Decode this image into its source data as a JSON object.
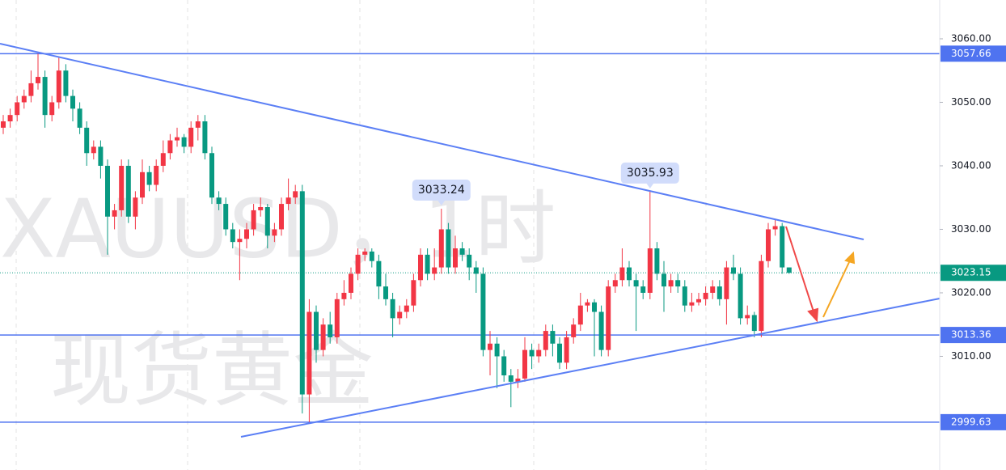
{
  "chart_data": {
    "type": "candlestick",
    "watermark": [
      "XAUUSD，1时",
      "现货黄金"
    ],
    "up_color": "#f23645",
    "down_color": "#089981",
    "level_color": "#4f73f0",
    "ylim": [
      2992.1,
      3066.11
    ],
    "yticks": [
      {
        "value": 3010,
        "label": "3010.00"
      },
      {
        "value": 3020,
        "label": "3020.00"
      },
      {
        "value": 3030,
        "label": "3030.00"
      },
      {
        "value": 3040,
        "label": "3040.00"
      },
      {
        "value": 3050,
        "label": "3050.00"
      },
      {
        "value": 3060,
        "label": "3060.00"
      }
    ],
    "levels": [
      {
        "value": 3057.66,
        "label": "3057.66"
      },
      {
        "value": 3013.36,
        "label": "3013.36"
      },
      {
        "value": 2999.63,
        "label": "2999.63"
      }
    ],
    "last_price": {
      "value": 3023.15,
      "label": "3023.15"
    },
    "annotations": [
      {
        "index": 63,
        "value": 3033.24,
        "label": "3033.24"
      },
      {
        "index": 93,
        "value": 3035.93,
        "label": "3035.93"
      }
    ],
    "open": [
      3046,
      3047,
      3048,
      3050,
      3051,
      3053,
      3054,
      3048,
      3050,
      3055,
      3051,
      3049,
      3046,
      3042,
      3043,
      3040,
      3032,
      3033,
      3040,
      3032,
      3035,
      3039,
      3037,
      3040,
      3042,
      3044,
      3044.5,
      3043,
      3046,
      3047,
      3042,
      3035,
      3034,
      3030,
      3028,
      3028.5,
      3030,
      3033,
      3033.5,
      3029,
      3030,
      3034,
      3035,
      3036,
      3004,
      3017,
      3011,
      3015,
      3013,
      3019,
      3020,
      3023,
      3026,
      3026.5,
      3025,
      3021,
      3019,
      3016,
      3017,
      3018,
      3022,
      3026,
      3023,
      3024,
      3030,
      3024,
      3027,
      3026,
      3024,
      3023,
      3011,
      3012,
      3010,
      3007,
      3006,
      3006.5,
      3011,
      3010,
      3011,
      3014,
      3012,
      3009,
      3013,
      3015,
      3018,
      3018.5,
      3017,
      3011,
      3021,
      3022,
      3024,
      3022,
      3021,
      3020,
      3027,
      3023,
      3021,
      3022,
      3021,
      3018,
      3018.5,
      3019,
      3020,
      3021,
      3019,
      3024,
      3023,
      3016,
      3016.5,
      3014,
      3025,
      3030,
      3030.5,
      3024
    ],
    "high": [
      3048,
      3049,
      3051,
      3052,
      3055,
      3057.66,
      3055,
      3051,
      3057,
      3056,
      3052,
      3050,
      3047,
      3044,
      3044,
      3041,
      3034,
      3041,
      3041,
      3036,
      3041,
      3040,
      3041,
      3044,
      3045,
      3046,
      3045,
      3047,
      3048,
      3048,
      3043,
      3036,
      3035,
      3031,
      3030,
      3031,
      3034,
      3035,
      3034,
      3031,
      3035,
      3038,
      3037,
      3037,
      3019,
      3018,
      3016,
      3017,
      3020,
      3022,
      3024,
      3027,
      3027,
      3027,
      3026,
      3023,
      3020,
      3018,
      3019,
      3023,
      3027,
      3027,
      3027,
      3033.24,
      3031,
      3029,
      3028,
      3027,
      3025,
      3024,
      3014,
      3013,
      3011,
      3008,
      3008,
      3013,
      3012,
      3012,
      3015,
      3015,
      3013,
      3014,
      3016,
      3020,
      3019,
      3019,
      3018,
      3022,
      3023,
      3027,
      3025,
      3023,
      3022,
      3035.93,
      3028,
      3025,
      3023,
      3023,
      3022,
      3020,
      3020,
      3021,
      3022,
      3022,
      3025,
      3026,
      3024,
      3018,
      3017,
      3026,
      3031,
      3031.5,
      3031,
      3024
    ],
    "low": [
      3045,
      3046,
      3047,
      3049,
      3050,
      3052,
      3046,
      3047,
      3049,
      3050,
      3047,
      3045,
      3040,
      3041,
      3038,
      3026,
      3030,
      3032,
      3031,
      3030,
      3034,
      3036,
      3036,
      3039,
      3041,
      3043,
      3042,
      3042,
      3044,
      3041,
      3034,
      3033,
      3029,
      3027,
      3022,
      3027,
      3029,
      3032,
      3027,
      3028,
      3029,
      3033,
      3034,
      3001,
      2999.63,
      3009,
      3010,
      3012,
      3012,
      3018,
      3019,
      3022,
      3025,
      3024,
      3019,
      3018,
      3013,
      3015,
      3016,
      3017,
      3021,
      3022,
      3022,
      3023,
      3023,
      3023,
      3025,
      3022,
      3020,
      3010,
      3007,
      3005,
      3006,
      3002,
      3005,
      3006,
      3008,
      3009,
      3010,
      3010,
      3008,
      3008,
      3012,
      3014,
      3017,
      3010,
      3010,
      3010,
      3020,
      3021,
      3021,
      3014,
      3019,
      3019,
      3022,
      3017,
      3020,
      3020,
      3017,
      3017,
      3018,
      3018,
      3019,
      3018,
      3015,
      3022,
      3015,
      3015,
      3013,
      3013,
      3024,
      3029,
      3023,
      3023
    ],
    "close": [
      3047,
      3048,
      3050,
      3051,
      3053,
      3054,
      3048,
      3050,
      3055,
      3051,
      3049,
      3046,
      3042,
      3043,
      3040,
      3032,
      3033,
      3040,
      3032,
      3035,
      3039,
      3037,
      3040,
      3042,
      3044,
      3044.5,
      3043,
      3046,
      3047,
      3042,
      3035,
      3034,
      3030,
      3028,
      3028.5,
      3030,
      3033,
      3033.5,
      3029,
      3030,
      3034,
      3035,
      3036,
      3004,
      3017,
      3011,
      3015,
      3013,
      3019,
      3020,
      3023,
      3026,
      3026.5,
      3025,
      3021,
      3019,
      3016,
      3017,
      3018,
      3022,
      3026,
      3023,
      3024,
      3030,
      3024,
      3027,
      3026,
      3024,
      3023,
      3011,
      3012,
      3010,
      3007,
      3006,
      3006.5,
      3011,
      3010,
      3011,
      3014,
      3012,
      3009,
      3013,
      3015,
      3018,
      3018.5,
      3017,
      3011,
      3021,
      3022,
      3024,
      3022,
      3021,
      3020,
      3027,
      3023,
      3021,
      3022,
      3021,
      3018,
      3018.5,
      3019,
      3020,
      3021,
      3019,
      3024,
      3023,
      3016,
      3016.5,
      3014,
      3025,
      3030,
      3030.5,
      3024,
      3023.15
    ]
  }
}
